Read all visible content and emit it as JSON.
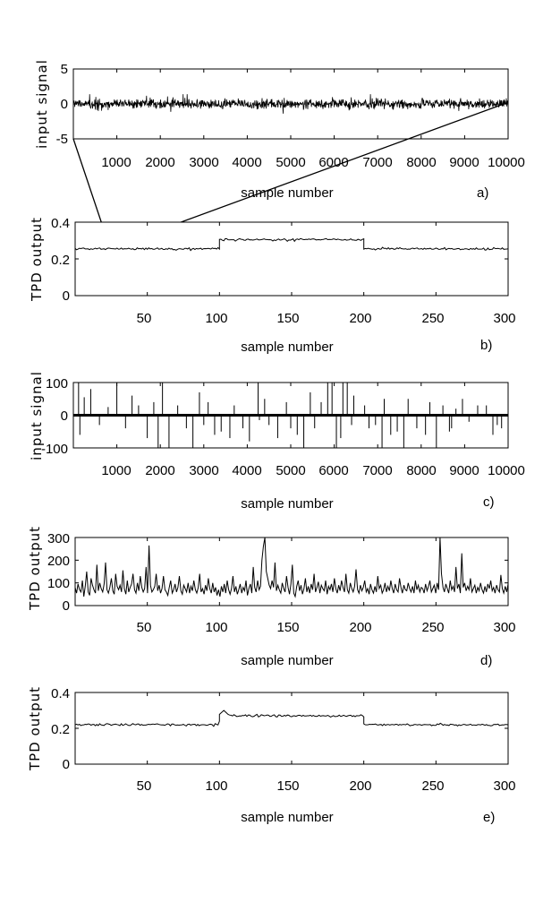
{
  "chart_data": [
    {
      "panel": "a)",
      "type": "line",
      "xlabel": "sample number",
      "ylabel": "input signal",
      "xlim": [
        0,
        10000
      ],
      "ylim": [
        -5,
        5
      ],
      "xticks": [
        "1000",
        "2000",
        "3000",
        "4000",
        "5000",
        "6000",
        "7000",
        "8000",
        "9000",
        "10000"
      ],
      "yticks": [
        "5",
        "0",
        "-5"
      ],
      "noise": {
        "kind": "gaussian",
        "mean": 0,
        "std": 0.35,
        "points": 1200
      }
    },
    {
      "panel": "b)",
      "type": "line",
      "xlabel": "sample number",
      "ylabel": "TPD output",
      "xlim": [
        0,
        300
      ],
      "ylim": [
        0,
        0.4
      ],
      "xticks": [
        "50",
        "100",
        "150",
        "200",
        "250",
        "300"
      ],
      "yticks": [
        "0.4",
        "0.2",
        "0"
      ],
      "segments": [
        {
          "x": [
            0,
            100
          ],
          "y": 0.255
        },
        {
          "x": [
            100,
            200
          ],
          "y": 0.305
        },
        {
          "x": [
            200,
            300
          ],
          "y": 0.255
        }
      ],
      "noise": {
        "std": 0.003
      }
    },
    {
      "panel": "c)",
      "type": "line",
      "xlabel": "sample number",
      "ylabel": "input signal",
      "xlim": [
        0,
        10000
      ],
      "ylim": [
        -100,
        100
      ],
      "xticks": [
        "1000",
        "2000",
        "3000",
        "4000",
        "5000",
        "6000",
        "7000",
        "8000",
        "9000",
        "10000"
      ],
      "yticks": [
        "100",
        "0",
        "-100"
      ],
      "spikes": [
        [
          120,
          100
        ],
        [
          150,
          -60
        ],
        [
          250,
          55
        ],
        [
          400,
          80
        ],
        [
          600,
          -30
        ],
        [
          800,
          25
        ],
        [
          1000,
          100
        ],
        [
          1200,
          -40
        ],
        [
          1350,
          60
        ],
        [
          1500,
          30
        ],
        [
          1700,
          -70
        ],
        [
          1850,
          40
        ],
        [
          1950,
          -100
        ],
        [
          2050,
          100
        ],
        [
          2200,
          -100
        ],
        [
          2400,
          30
        ],
        [
          2600,
          -40
        ],
        [
          2750,
          -100
        ],
        [
          2900,
          70
        ],
        [
          3000,
          -30
        ],
        [
          3100,
          40
        ],
        [
          3250,
          -60
        ],
        [
          3400,
          -50
        ],
        [
          3600,
          -70
        ],
        [
          3700,
          30
        ],
        [
          3900,
          -40
        ],
        [
          4050,
          -80
        ],
        [
          4250,
          100
        ],
        [
          4280,
          -15
        ],
        [
          4400,
          50
        ],
        [
          4500,
          -30
        ],
        [
          4700,
          -70
        ],
        [
          4900,
          40
        ],
        [
          5000,
          -40
        ],
        [
          5150,
          -60
        ],
        [
          5300,
          -100
        ],
        [
          5450,
          70
        ],
        [
          5550,
          -40
        ],
        [
          5700,
          40
        ],
        [
          5850,
          100
        ],
        [
          5950,
          100
        ],
        [
          6050,
          -100
        ],
        [
          6150,
          -70
        ],
        [
          6200,
          100
        ],
        [
          6300,
          100
        ],
        [
          6400,
          -30
        ],
        [
          6450,
          60
        ],
        [
          6700,
          30
        ],
        [
          6800,
          -40
        ],
        [
          6950,
          -30
        ],
        [
          7100,
          -100
        ],
        [
          7150,
          50
        ],
        [
          7300,
          -60
        ],
        [
          7450,
          -50
        ],
        [
          7600,
          -100
        ],
        [
          7700,
          50
        ],
        [
          7900,
          -40
        ],
        [
          8100,
          -60
        ],
        [
          8200,
          40
        ],
        [
          8350,
          -100
        ],
        [
          8500,
          30
        ],
        [
          8650,
          -50
        ],
        [
          8700,
          -40
        ],
        [
          8800,
          20
        ],
        [
          8950,
          50
        ],
        [
          9100,
          -20
        ],
        [
          9300,
          30
        ],
        [
          9500,
          30
        ],
        [
          9650,
          -60
        ],
        [
          9750,
          -30
        ],
        [
          9850,
          -40
        ]
      ]
    },
    {
      "panel": "d)",
      "type": "line",
      "xlabel": "sample number",
      "ylabel": "TPD output",
      "xlim": [
        0,
        300
      ],
      "ylim": [
        0,
        300
      ],
      "xticks": [
        "50",
        "100",
        "150",
        "200",
        "250",
        "300"
      ],
      "yticks": [
        "300",
        "200",
        "100",
        "0"
      ],
      "values": [
        80,
        55,
        95,
        70,
        60,
        110,
        40,
        85,
        150,
        60,
        45,
        120,
        90,
        70,
        55,
        180,
        65,
        100,
        75,
        60,
        95,
        190,
        70,
        55,
        80,
        120,
        65,
        50,
        140,
        85,
        70,
        90,
        60,
        155,
        75,
        50,
        110,
        60,
        80,
        95,
        140,
        70,
        55,
        100,
        65,
        130,
        80,
        60,
        75,
        170,
        55,
        265,
        90,
        60,
        70,
        85,
        140,
        65,
        90,
        55,
        75,
        130,
        70,
        60,
        45,
        80,
        110,
        55,
        70,
        95,
        60,
        80,
        130,
        65,
        50,
        90,
        75,
        60,
        100,
        55,
        85,
        65,
        110,
        70,
        55,
        80,
        140,
        60,
        75,
        50,
        90,
        65,
        120,
        75,
        55,
        100,
        60,
        80,
        45,
        70,
        40,
        85,
        60,
        95,
        55,
        110,
        70,
        50,
        75,
        130,
        60,
        85,
        50,
        70,
        95,
        55,
        80,
        65,
        110,
        45,
        75,
        95,
        55,
        170,
        80,
        60,
        110,
        70,
        85,
        200,
        260,
        300,
        150,
        120,
        90,
        75,
        110,
        80,
        190,
        65,
        90,
        70,
        55,
        100,
        75,
        60,
        130,
        80,
        50,
        95,
        180,
        55,
        40,
        85,
        110,
        65,
        90,
        50,
        75,
        120,
        60,
        85,
        55,
        95,
        70,
        140,
        60,
        80,
        105,
        55,
        90,
        75,
        65,
        110,
        50,
        85,
        70,
        95,
        60,
        120,
        75,
        55,
        90,
        65,
        110,
        80,
        60,
        140,
        70,
        55,
        100,
        75,
        60,
        85,
        160,
        70,
        55,
        90,
        65,
        80,
        110,
        60,
        75,
        50,
        95,
        70,
        55,
        85,
        60,
        130,
        75,
        90,
        55,
        70,
        100,
        60,
        85,
        65,
        110,
        75,
        55,
        95,
        70,
        60,
        120,
        80,
        55,
        90,
        70,
        65,
        100,
        75,
        60,
        85,
        55,
        110,
        70,
        90,
        60,
        80,
        75,
        55,
        95,
        65,
        85,
        110,
        60,
        75,
        90,
        55,
        100,
        70,
        300,
        140,
        80,
        60,
        95,
        75,
        55,
        110,
        70,
        85,
        60,
        170,
        75,
        95,
        55,
        230,
        80,
        100,
        65,
        85,
        70,
        120,
        60,
        75,
        90,
        55,
        80,
        65,
        100,
        70,
        55,
        85,
        60,
        95,
        75,
        110,
        65,
        80,
        55,
        90,
        70,
        60,
        135,
        75,
        55,
        85,
        60,
        95
      ]
    },
    {
      "panel": "e)",
      "type": "line",
      "xlabel": "sample number",
      "ylabel": "TPD output",
      "xlim": [
        0,
        300
      ],
      "ylim": [
        0,
        0.4
      ],
      "xticks": [
        "50",
        "100",
        "150",
        "200",
        "250",
        "300"
      ],
      "yticks": [
        "0.4",
        "0.2",
        "0"
      ],
      "segments": [
        {
          "x": [
            0,
            100
          ],
          "y": 0.22
        },
        {
          "x": [
            100,
            200
          ],
          "y": 0.27
        },
        {
          "x": [
            200,
            300
          ],
          "y": 0.22
        }
      ],
      "transient": {
        "x": 103,
        "y": 0.3
      },
      "noise": {
        "std": 0.003
      }
    }
  ]
}
